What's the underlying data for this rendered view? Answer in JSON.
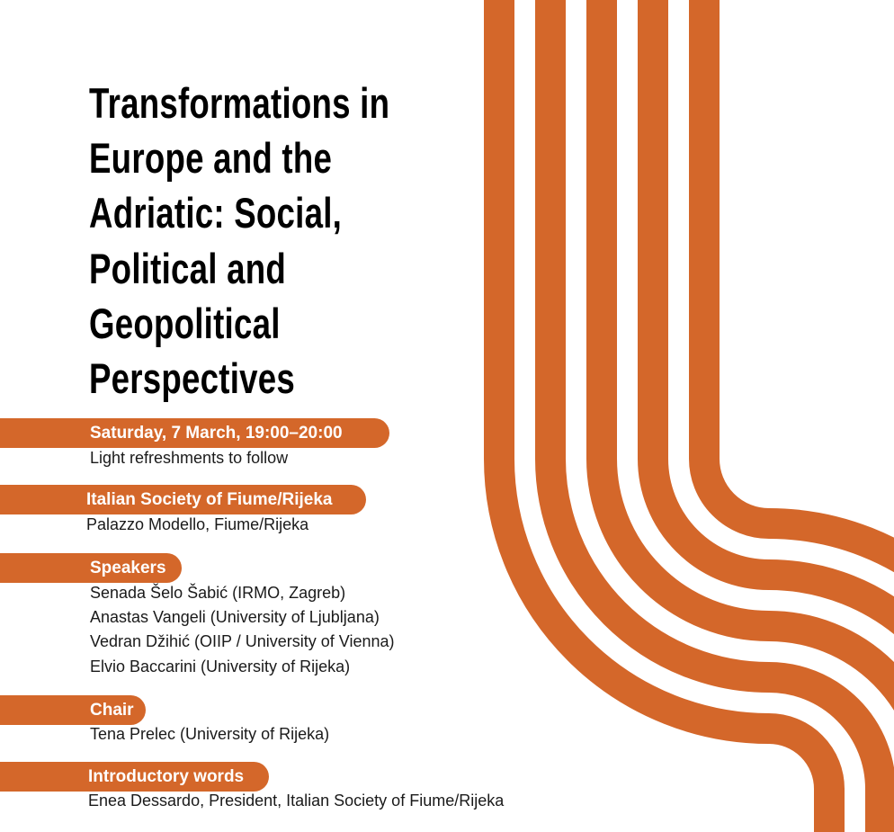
{
  "title_lines": [
    "Transformations in",
    "Europe and the",
    "Adriatic: Social,",
    "Political and",
    "Geopolitical",
    "Perspectives"
  ],
  "accent_color": "#D4672A",
  "date": {
    "label": "Saturday, 7 March,  19:00–20:00",
    "note": "Light refreshments to follow"
  },
  "venue": {
    "label": "Italian Society of Fiume/Rijeka",
    "address": "Palazzo Modello, Fiume/Rijeka"
  },
  "speakers": {
    "label": "Speakers",
    "items": [
      "Senada Šelo Šabić (IRMO, Zagreb)",
      "Anastas Vangeli (University of Ljubljana)",
      "Vedran Džihić (OIIP / University of Vienna)",
      "Elvio Baccarini (University of Rijeka)"
    ]
  },
  "chair": {
    "label": "Chair",
    "name": "Tena Prelec (University of Rijeka)"
  },
  "intro": {
    "label": "Introductory words",
    "name": "Enea Dessardo, President, Italian Society of Fiume/Rijeka"
  }
}
